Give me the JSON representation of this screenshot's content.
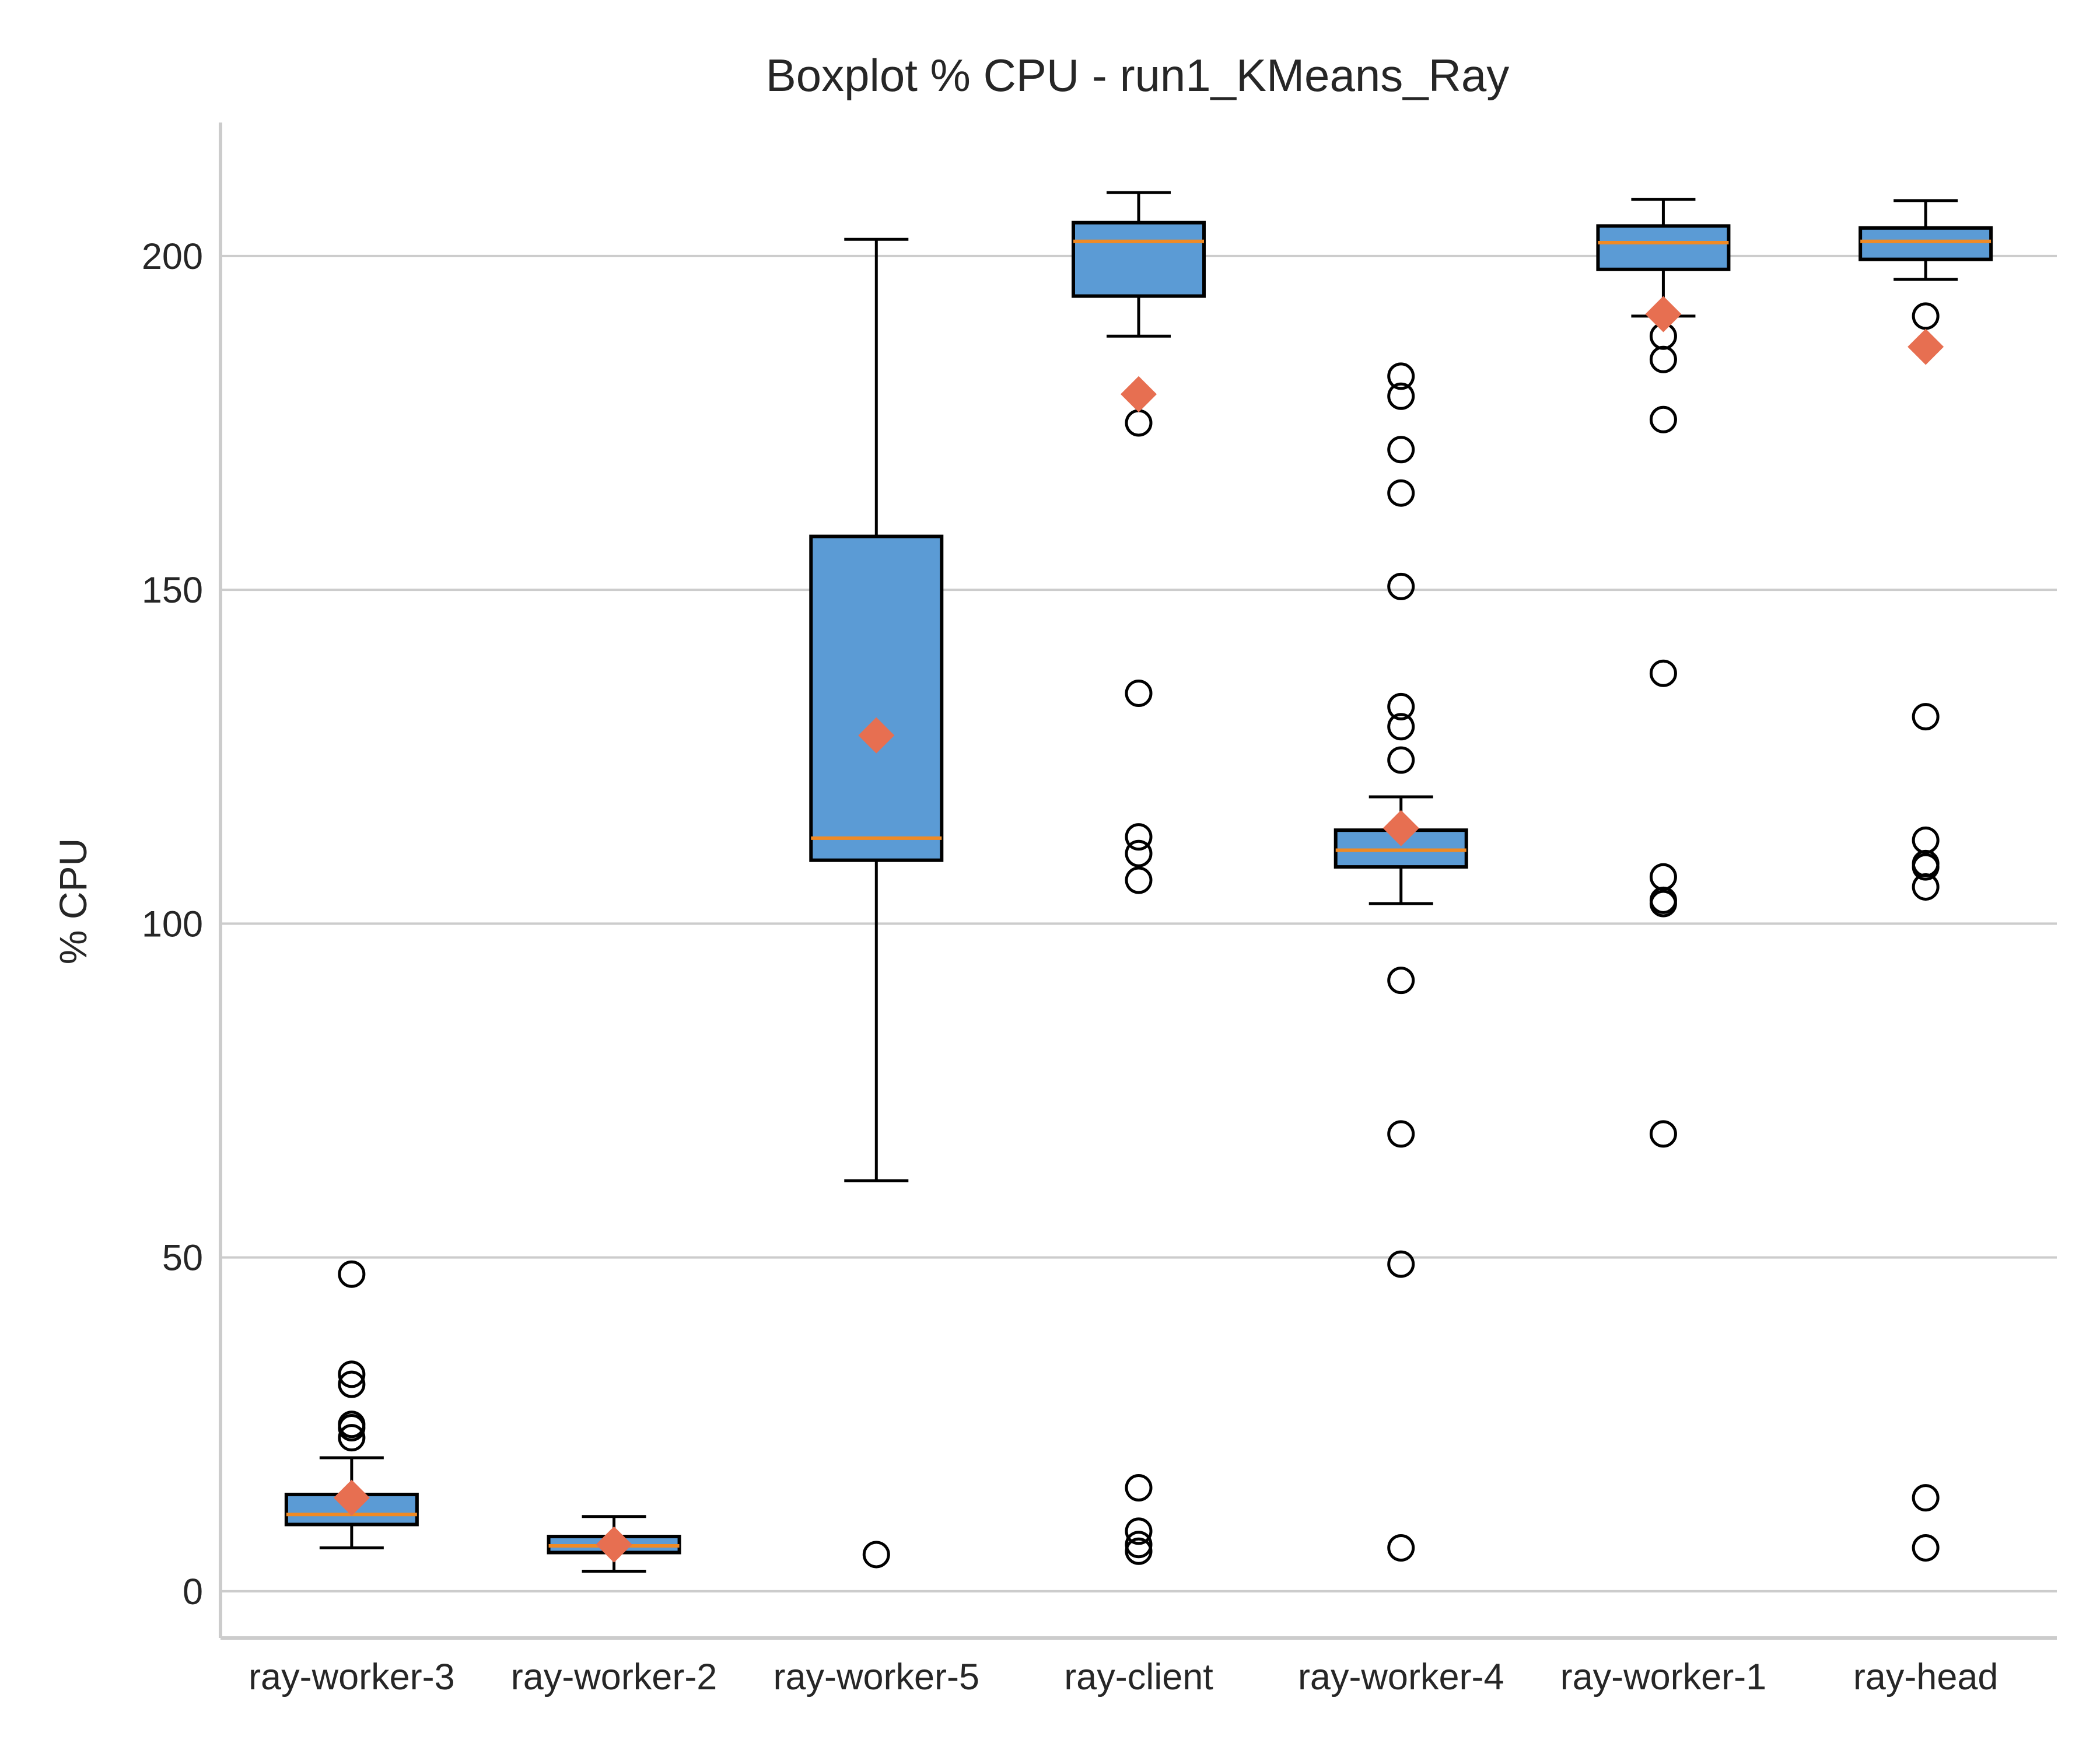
{
  "chart_data": {
    "type": "boxplot",
    "title": "Boxplot % CPU - run1_KMeans_Ray",
    "xlabel": "",
    "ylabel": "% CPU",
    "ylim": [
      -7,
      220
    ],
    "yticks": [
      0,
      50,
      100,
      150,
      200
    ],
    "grid": "horizontal",
    "colors": {
      "box": "#5b9bd5",
      "median": "#f08a24",
      "mean": "#e76f51",
      "edge": "#000000",
      "grid": "#cccccc"
    },
    "categories": [
      "ray-worker-3",
      "ray-worker-2",
      "ray-worker-5",
      "ray-client",
      "ray-worker-4",
      "ray-worker-1",
      "ray-head"
    ],
    "boxes": [
      {
        "label": "ray-worker-3",
        "whisker_low": 6.5,
        "q1": 10,
        "median": 11.5,
        "q3": 14.5,
        "whisker_high": 20,
        "mean": 14,
        "fliers": [
          47.5,
          32.5,
          31,
          25,
          24.5,
          23
        ]
      },
      {
        "label": "ray-worker-2",
        "whisker_low": 3,
        "q1": 5.8,
        "median": 6.8,
        "q3": 8.2,
        "whisker_high": 11.2,
        "mean": 7,
        "fliers": []
      },
      {
        "label": "ray-worker-5",
        "whisker_low": 61.5,
        "q1": 109.5,
        "median": 112.8,
        "q3": 158,
        "whisker_high": 202.5,
        "mean": 128.2,
        "fliers": [
          5.5
        ]
      },
      {
        "label": "ray-client",
        "whisker_low": 188,
        "q1": 194,
        "median": 202.2,
        "q3": 205,
        "whisker_high": 209.5,
        "mean": 179.3,
        "fliers": [
          175,
          134.5,
          113,
          110.5,
          106.5,
          15.5,
          9,
          7,
          6
        ]
      },
      {
        "label": "ray-worker-4",
        "whisker_low": 103,
        "q1": 108.5,
        "median": 111,
        "q3": 114,
        "whisker_high": 119,
        "mean": 114.3,
        "fliers": [
          182,
          179,
          171,
          164.5,
          150.5,
          132.5,
          129.5,
          124.5,
          91.5,
          68.5,
          49,
          6.5
        ]
      },
      {
        "label": "ray-worker-1",
        "whisker_low": 191,
        "q1": 198,
        "median": 202,
        "q3": 204.5,
        "whisker_high": 208.5,
        "mean": 191.3,
        "fliers": [
          188,
          184.5,
          175.5,
          137.5,
          107,
          103.5,
          103,
          68.5
        ]
      },
      {
        "label": "ray-head",
        "whisker_low": 196.5,
        "q1": 199.5,
        "median": 202.2,
        "q3": 204.2,
        "whisker_high": 208.3,
        "mean": 186.4,
        "fliers": [
          191,
          131,
          112.5,
          109,
          108.5,
          105.5,
          14,
          6.5
        ]
      }
    ]
  }
}
